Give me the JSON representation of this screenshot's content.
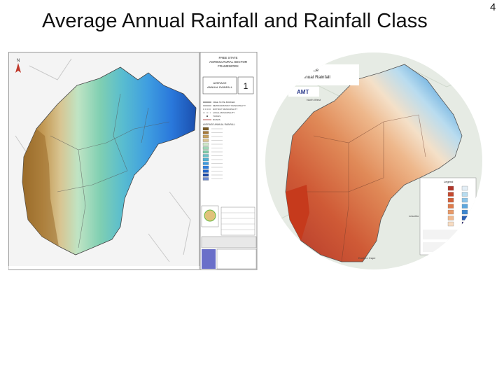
{
  "slide": {
    "title": "Average Annual Rainfall and Rainfall Class",
    "page_number": "4"
  },
  "left_map": {
    "north_arrow": "N",
    "title_block": [
      "FREE STATE",
      "AGRICULTURAL SECTOR",
      "FRAMEWORK"
    ],
    "map_name": [
      "AVERAGE",
      "ANNUAL RAINFALL"
    ],
    "map_number": "1",
    "legend_heading": "AVERAGE ANNUAL RAINFALL",
    "legend_lines": [
      "FREE STATE BORDER",
      "METRO/DISTRICT MUNICIPALITY",
      "DISTRICT MUNICIPALITY",
      "LOCAL MUNICIPALITY",
      "TOWNS",
      "ROADS"
    ],
    "legend_colors": [
      "#7a5a22",
      "#a77b3a",
      "#c8a25e",
      "#dcc48f",
      "#cfe7c8",
      "#9fd7b4",
      "#7ccaa7",
      "#6cc3c9",
      "#4fb3d6",
      "#3d9be0",
      "#2c7fe0",
      "#1f63c9",
      "#1a48a6",
      "#6a8ad0"
    ]
  },
  "right_map": {
    "title_lines": [
      "rovince",
      "ian Annual Rainfall"
    ],
    "logo_text": "AMT",
    "place_labels": [
      "North West",
      "Lesotho",
      "Eastern Cape"
    ],
    "legend_heading": "Legend",
    "legend_colors": [
      "#b0362a",
      "#c4492f",
      "#d2603a",
      "#de7c4c",
      "#e89a68",
      "#f0b98f",
      "#f7dcc2",
      "#e3eef6",
      "#b8dcef",
      "#8cc4e8",
      "#5ea7dd",
      "#3d86cf",
      "#2a5fb3",
      "#241f6b"
    ]
  }
}
